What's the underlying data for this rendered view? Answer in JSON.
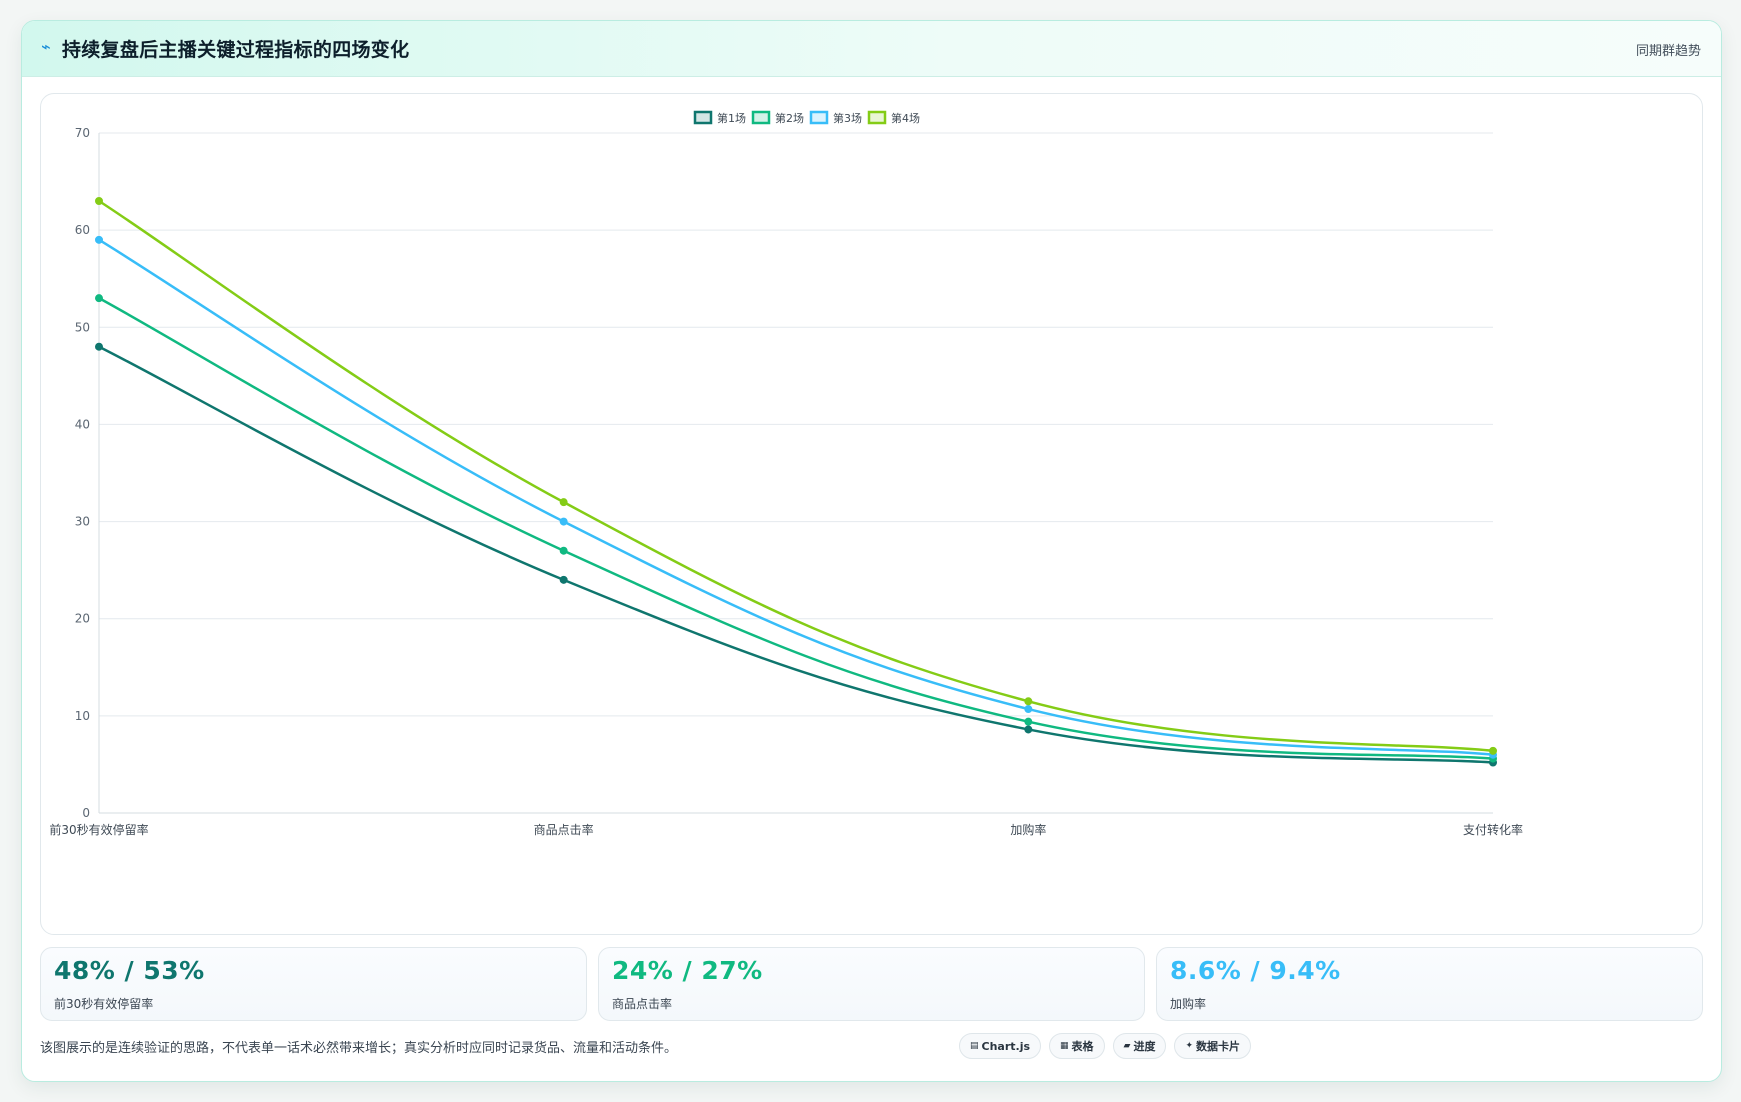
{
  "header": {
    "icon": "trend-icon",
    "title": "持续复盘后主播关键过程指标的四场变化",
    "tag": "同期群趋势"
  },
  "chart_data": {
    "type": "line",
    "categories": [
      "前30秒有效停留率",
      "商品点击率",
      "加购率",
      "支付转化率"
    ],
    "series": [
      {
        "name": "第1场",
        "color": "#0f766e",
        "values": [
          48,
          24,
          8.6,
          5.2
        ]
      },
      {
        "name": "第2场",
        "color": "#10b981",
        "values": [
          53,
          27,
          9.4,
          5.6
        ]
      },
      {
        "name": "第3场",
        "color": "#38bdf8",
        "values": [
          59,
          30,
          10.7,
          6.0
        ]
      },
      {
        "name": "第4场",
        "color": "#84cc16",
        "values": [
          63,
          32,
          11.5,
          6.4
        ]
      }
    ],
    "ylim": [
      0,
      70
    ],
    "yticks": [
      "0",
      "10",
      "20",
      "30",
      "40",
      "50",
      "60",
      "70"
    ],
    "grid": true,
    "legend_position": "top-center"
  },
  "kpis": [
    {
      "value": "48% / 53%",
      "label": "前30秒有效停留率",
      "color": "#0f766e"
    },
    {
      "value": "24% / 27%",
      "label": "商品点击率",
      "color": "#10b981"
    },
    {
      "value": "8.6% / 9.4%",
      "label": "加购率",
      "color": "#38bdf8"
    }
  ],
  "footnote": "该图展示的是连续验证的思路，不代表单一话术必然带来增长；真实分析时应同时记录货品、流量和活动条件。",
  "tools": [
    {
      "icon": "▤",
      "label": "Chart.js"
    },
    {
      "icon": "▦",
      "label": "表格"
    },
    {
      "icon": "▰",
      "label": "进度"
    },
    {
      "icon": "✦",
      "label": "数据卡片"
    }
  ]
}
